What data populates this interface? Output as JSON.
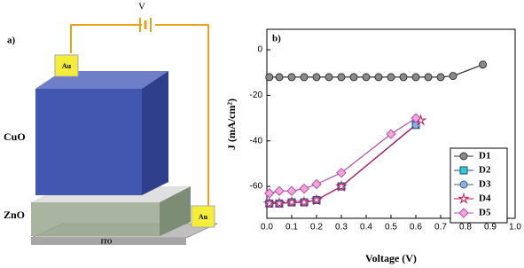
{
  "panel_a": {
    "label": "a)",
    "voltage": "V",
    "electrodes": [
      "Au",
      "Au"
    ],
    "layers": [
      "CuO",
      "ZnO",
      "ITO"
    ]
  },
  "chart_data": {
    "type": "line",
    "panel_label": "b)",
    "x_label": "Voltage (V)",
    "y_label": "J (mA/cm²)",
    "xlim": [
      0,
      1
    ],
    "ylim": [
      -74,
      9
    ],
    "xticks": [
      {
        "value": 0,
        "label": "0.0"
      },
      0.1,
      0.2,
      0.3,
      0.4,
      0.5,
      0.6,
      0.7,
      0.8,
      0.9,
      {
        "value": 1,
        "label": "1.0"
      }
    ],
    "yticks": [
      0,
      -20,
      -40,
      -60
    ],
    "legend": "lower right",
    "series": [
      {
        "name": "D1",
        "color": "#8a8a8a",
        "line_color": "#333333",
        "marker": "circle",
        "x": [
          0.01,
          0.05,
          0.1,
          0.15,
          0.2,
          0.25,
          0.3,
          0.35,
          0.4,
          0.45,
          0.5,
          0.55,
          0.6,
          0.65,
          0.7,
          0.75,
          0.87
        ],
        "y": [
          -12,
          -12,
          -12,
          -12,
          -12,
          -12,
          -12,
          -12,
          -12,
          -12,
          -12,
          -12,
          -12,
          -12,
          -12,
          -11.5,
          -6.5
        ]
      },
      {
        "name": "D2",
        "color": "#33cccc",
        "line_color": "#1a4f8a",
        "marker": "square",
        "x": [
          0.01,
          0.05,
          0.1,
          0.15,
          0.2,
          0.3,
          0.6
        ],
        "y": [
          -67.5,
          -67.5,
          -67,
          -67,
          -66,
          -60,
          -33
        ]
      },
      {
        "name": "D3",
        "color": "#8fb0d8",
        "line_color": "#3a5fa0",
        "marker": "circle",
        "x": [
          0.01,
          0.05,
          0.1,
          0.15,
          0.2,
          0.3,
          0.6
        ],
        "y": [
          -67.5,
          -67.5,
          -67,
          -67,
          -66,
          -60,
          -33
        ]
      },
      {
        "name": "D4",
        "color": "#ffffff",
        "line_color": "#c2185b",
        "marker": "star",
        "x": [
          0.01,
          0.05,
          0.1,
          0.15,
          0.2,
          0.3,
          0.62
        ],
        "y": [
          -67.5,
          -67.5,
          -67,
          -67,
          -66,
          -60,
          -31
        ]
      },
      {
        "name": "D5",
        "color": "#f4a6d7",
        "line_color": "#b04fb0",
        "marker": "diamond",
        "x": [
          0.01,
          0.05,
          0.1,
          0.15,
          0.2,
          0.3,
          0.5,
          0.6
        ],
        "y": [
          -63,
          -62,
          -62,
          -61,
          -59,
          -54,
          -37,
          -30
        ]
      }
    ]
  }
}
